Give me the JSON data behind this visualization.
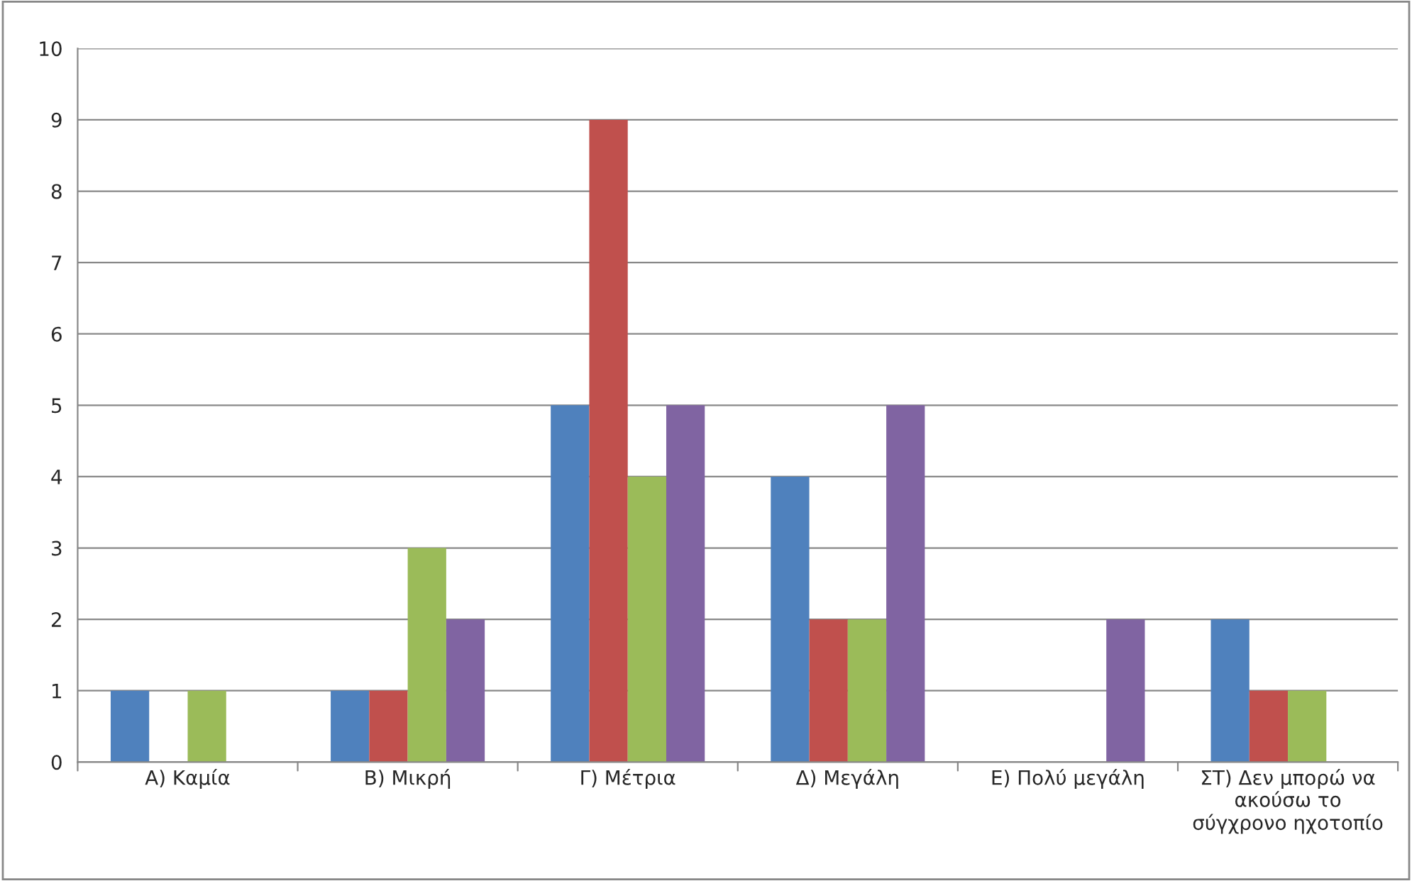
{
  "chart_data": {
    "type": "bar",
    "categories": [
      "Α) Καμία",
      "Β) Μικρή",
      "Γ) Μέτρια",
      "Δ) Μεγάλη",
      "Ε) Πολύ μεγάλη",
      "ΣΤ) Δεν μπορώ να\nακούσω το\nσύγχρονο ηχοτοπίο"
    ],
    "series": [
      {
        "color": "#4f81bd",
        "values": [
          1,
          1,
          5,
          4,
          0,
          2
        ]
      },
      {
        "color": "#c0504d",
        "values": [
          0,
          1,
          9,
          2,
          0,
          1
        ]
      },
      {
        "color": "#9bbb59",
        "values": [
          1,
          3,
          4,
          2,
          0,
          1
        ]
      },
      {
        "color": "#8064a2",
        "values": [
          0,
          2,
          5,
          5,
          2,
          0
        ]
      }
    ],
    "ylim": [
      0,
      10
    ],
    "yticks": [
      0,
      1,
      2,
      3,
      4,
      5,
      6,
      7,
      8,
      9,
      10
    ],
    "grid": "y"
  }
}
